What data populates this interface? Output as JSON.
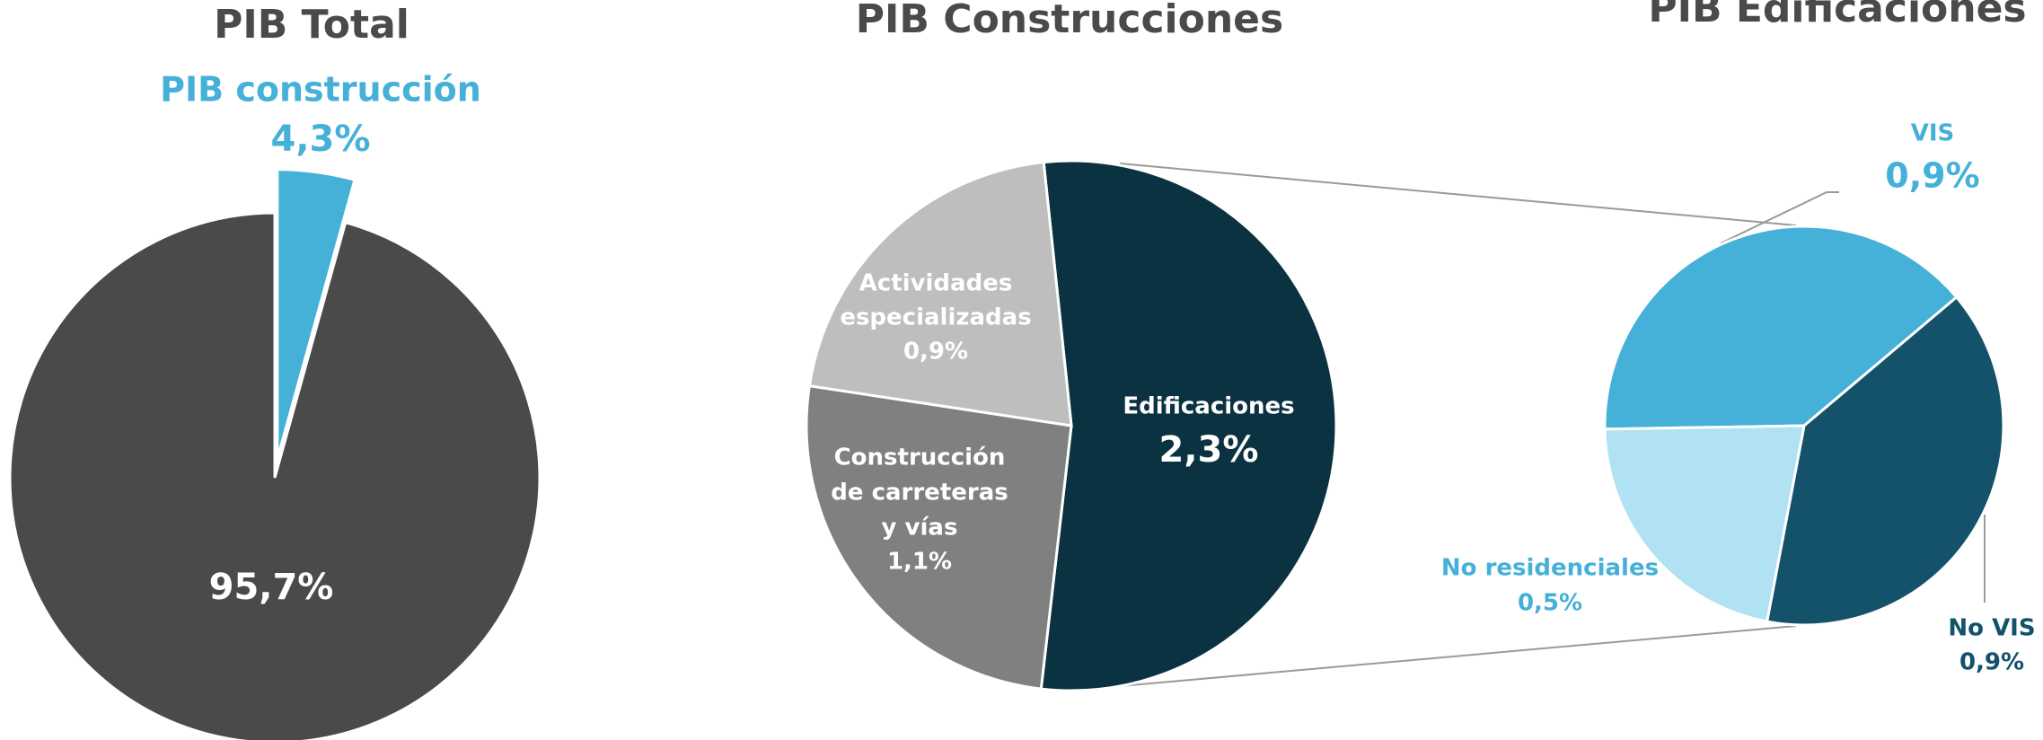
{
  "chart_data": [
    {
      "type": "pie",
      "title": "PIB Total",
      "categories": [
        [
          "PIB construcción"
        ],
        null
      ],
      "values": [
        4.3,
        95.7
      ],
      "value_labels": [
        "4,3%",
        "95,7%"
      ],
      "colors": [
        "#45b0d8",
        "#4a4a4a"
      ]
    },
    {
      "type": "pie",
      "title": "PIB Construcciones",
      "categories": [
        [
          "Edificaciones"
        ],
        [
          "Construcción",
          "de carreteras",
          "y vías"
        ],
        [
          "Actividades",
          "especializadas"
        ]
      ],
      "values": [
        2.3,
        1.1,
        0.9
      ],
      "value_labels": [
        "2,3%",
        "1,1%",
        "0,9%"
      ],
      "colors": [
        "#0b3240",
        "#808080",
        "#bebebe"
      ]
    },
    {
      "type": "pie",
      "title": "PIB Edificaciones",
      "categories": [
        [
          "VIS"
        ],
        [
          "No VIS"
        ],
        [
          "No residenciales"
        ]
      ],
      "values": [
        0.9,
        0.9,
        0.5
      ],
      "value_labels": [
        "0,9%",
        "0,9%",
        "0,5%"
      ],
      "colors": [
        "#45b0d8",
        "#13526a",
        "#b0e2f3"
      ]
    }
  ]
}
